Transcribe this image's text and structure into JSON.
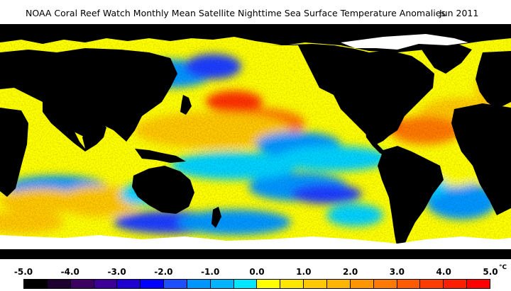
{
  "title": {
    "main": "NOAA Coral Reef Watch Monthly Mean Satellite Nighttime Sea Surface Temperature Anomalies",
    "date": "Jun 2011"
  },
  "legend": {
    "tick_labels": [
      "-5.0",
      "-4.0",
      "-3.0",
      "-2.0",
      "-1.0",
      "0.0",
      "1.0",
      "2.0",
      "3.0",
      "4.0",
      "5.0"
    ],
    "unit": "°C",
    "colors": [
      "#000000",
      "#1e0030",
      "#3c0060",
      "#3c0096",
      "#1e00d2",
      "#0000ff",
      "#1e50ff",
      "#0096ff",
      "#00b4ff",
      "#00e6ff",
      "#ffff00",
      "#ffe600",
      "#ffc800",
      "#ffb400",
      "#ff9600",
      "#ff7800",
      "#ff5a00",
      "#ff3c00",
      "#ff1e00",
      "#ff0000"
    ]
  },
  "map": {
    "land_color": "#000000",
    "ice_color": "#ffffff",
    "ocean_colors": {
      "strong_negative": "#1e3cff",
      "moderate_negative": "#0096ff",
      "weak_negative": "#00d2ff",
      "weak_positive": "#ffff00",
      "moderate_positive": "#ffc800",
      "strong_positive": "#ff7800",
      "very_strong_positive": "#ff3200"
    }
  }
}
